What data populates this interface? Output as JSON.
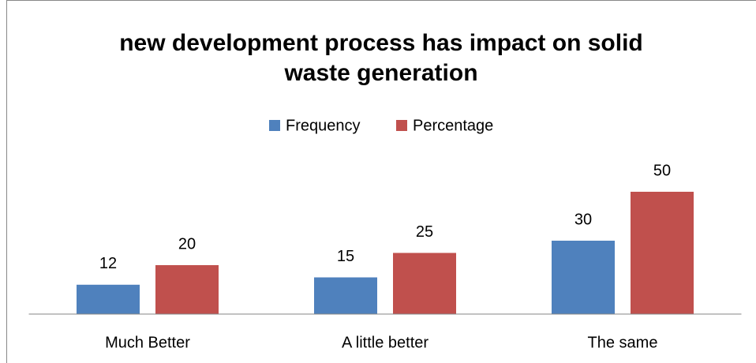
{
  "chart_data": {
    "type": "bar",
    "title": "new development process has impact on solid waste generation",
    "categories": [
      "Much Better",
      "A little better",
      "The same"
    ],
    "series": [
      {
        "name": "Frequency",
        "color": "#4f81bd",
        "values": [
          12,
          15,
          30
        ]
      },
      {
        "name": "Percentage",
        "color": "#c0504d",
        "values": [
          20,
          25,
          50
        ]
      }
    ],
    "ylim": [
      0,
      60
    ],
    "legend": "top"
  }
}
